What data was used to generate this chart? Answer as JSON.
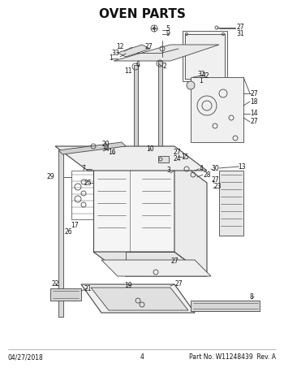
{
  "title": "OVEN PARTS",
  "title_fontsize": 11,
  "title_weight": "bold",
  "bg_color": "#ffffff",
  "line_color": "#444444",
  "text_color": "#111111",
  "footer_left": "04/27/2018",
  "footer_center": "4",
  "footer_right": "Part No. W11248439  Rev. A",
  "footer_fontsize": 5.5,
  "label_fontsize": 5.5
}
